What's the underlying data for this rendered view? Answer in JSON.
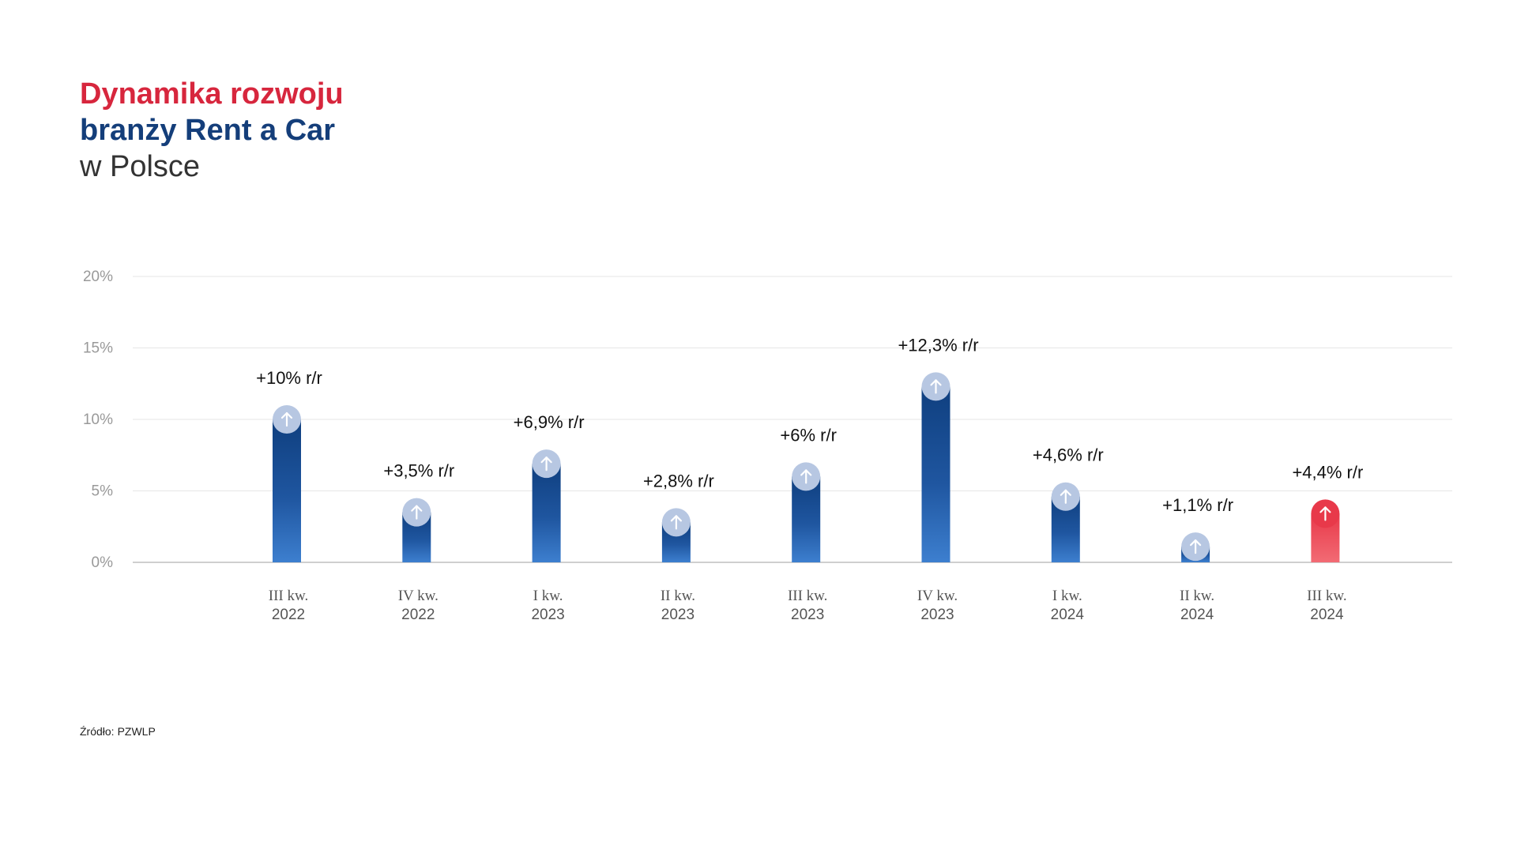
{
  "title": {
    "line1": "Dynamika rozwoju",
    "line2": "branży Rent a Car",
    "line3": "w Polsce"
  },
  "colors": {
    "title_red": "#d7263d",
    "title_blue": "#143e7a",
    "bar_blue_dark": "#0f3f7f",
    "bar_blue_light": "#3d7fcf",
    "bar_red": "#e8394a",
    "bar_red_light": "#f26b74",
    "marker_circle": "#b7c7e2",
    "gridline": "#e6e6e6",
    "axis": "#bfbfbf",
    "tick_text": "#999999"
  },
  "chart_data": {
    "type": "bar",
    "categories": [
      [
        "III kw.",
        "2022"
      ],
      [
        "IV kw.",
        "2022"
      ],
      [
        "I kw.",
        "2023"
      ],
      [
        "II kw.",
        "2023"
      ],
      [
        "III kw.",
        "2023"
      ],
      [
        "IV kw.",
        "2023"
      ],
      [
        "I kw.",
        "2024"
      ],
      [
        "II kw.",
        "2024"
      ],
      [
        "III kw.",
        "2024"
      ]
    ],
    "values": [
      10,
      3.5,
      6.9,
      2.8,
      6,
      12.3,
      4.6,
      1.1,
      4.4
    ],
    "data_labels": [
      "+10% r/r",
      "+3,5% r/r",
      "+6,9% r/r",
      "+2,8% r/r",
      "+6% r/r",
      "+12,3% r/r",
      "+4,6% r/r",
      "+1,1% r/r",
      "+4,4% r/r"
    ],
    "highlight_index": 8,
    "ylim": [
      0,
      20
    ],
    "yticks": [
      0,
      5,
      10,
      15,
      20
    ],
    "ytick_labels": [
      "0%",
      "5%",
      "10%",
      "15%",
      "20%"
    ],
    "grid": true,
    "marker_icon": "arrow-up-icon"
  },
  "source": {
    "label": "Źródło:",
    "value": "PZWLP"
  }
}
